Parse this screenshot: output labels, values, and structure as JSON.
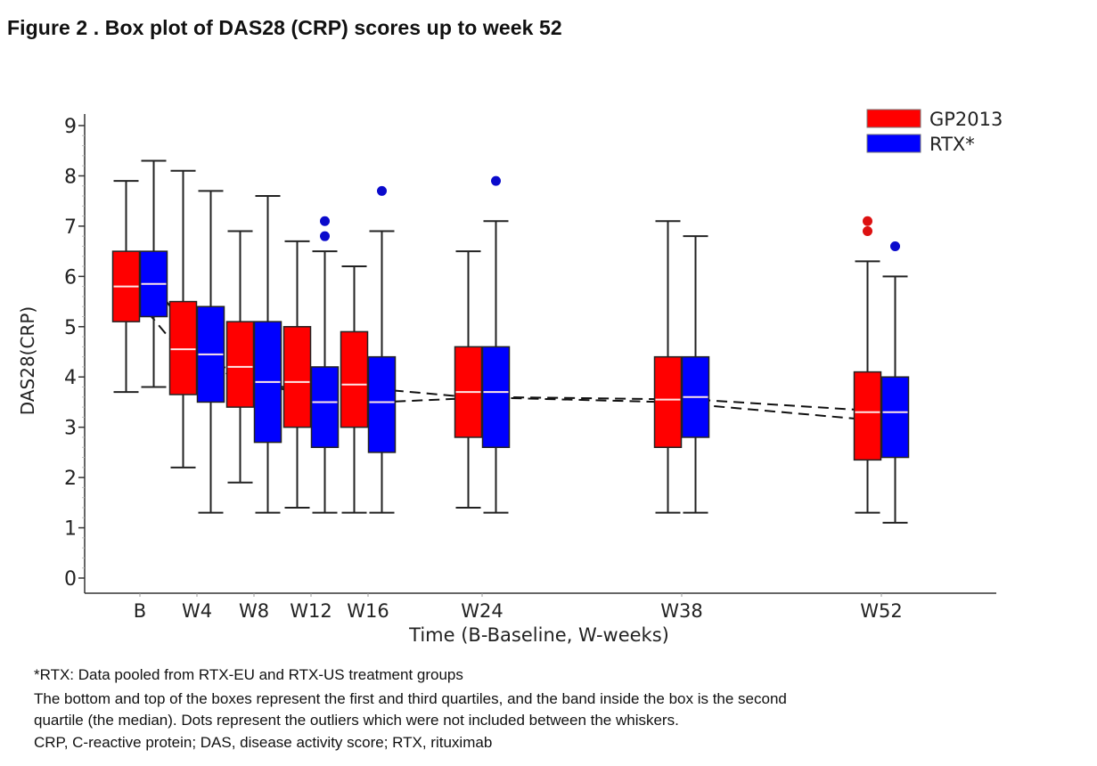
{
  "figure_title": "Figure 2 . Box plot of DAS28 (CRP) scores up to week 52",
  "chart_data": {
    "type": "boxplot",
    "title": "Figure 2 . Box plot of DAS28 (CRP) scores up to week 52",
    "xlabel": "Time (B-Baseline, W-weeks)",
    "ylabel": "DAS28(CRP)",
    "ylim": [
      0,
      9
    ],
    "yticks": [
      "0",
      "1",
      "2",
      "3",
      "4",
      "5",
      "6",
      "7",
      "8",
      "9"
    ],
    "x_weeks": [
      0,
      4,
      8,
      12,
      16,
      24,
      38,
      52
    ],
    "categories": [
      "B",
      "W4",
      "W8",
      "W12",
      "W16",
      "W24",
      "W38",
      "W52"
    ],
    "legend_position": "top-right",
    "series": [
      {
        "name": "GP2013",
        "color": "#ff0000",
        "boxes": [
          {
            "whisker_low": 3.7,
            "q1": 5.1,
            "median": 5.8,
            "q3": 6.5,
            "whisker_high": 7.9,
            "mean": 5.8,
            "outliers": []
          },
          {
            "whisker_low": 2.2,
            "q1": 3.65,
            "median": 4.55,
            "q3": 5.5,
            "whisker_high": 8.1,
            "mean": 4.45,
            "outliers": []
          },
          {
            "whisker_low": 1.9,
            "q1": 3.4,
            "median": 4.2,
            "q3": 5.1,
            "whisker_high": 6.9,
            "mean": 3.95,
            "outliers": []
          },
          {
            "whisker_low": 1.4,
            "q1": 3.0,
            "median": 3.9,
            "q3": 5.0,
            "whisker_high": 6.7,
            "mean": 3.75,
            "outliers": []
          },
          {
            "whisker_low": 1.3,
            "q1": 3.0,
            "median": 3.85,
            "q3": 4.9,
            "whisker_high": 6.2,
            "mean": 3.8,
            "outliers": []
          },
          {
            "whisker_low": 1.4,
            "q1": 2.8,
            "median": 3.7,
            "q3": 4.6,
            "whisker_high": 6.5,
            "mean": 3.6,
            "outliers": []
          },
          {
            "whisker_low": 1.3,
            "q1": 2.6,
            "median": 3.55,
            "q3": 4.4,
            "whisker_high": 7.1,
            "mean": 3.5,
            "outliers": []
          },
          {
            "whisker_low": 1.3,
            "q1": 2.35,
            "median": 3.3,
            "q3": 4.1,
            "whisker_high": 6.3,
            "mean": 3.15,
            "outliers": [
              6.9,
              7.1
            ]
          }
        ]
      },
      {
        "name": "RTX*",
        "color": "#0000ff",
        "boxes": [
          {
            "whisker_low": 3.8,
            "q1": 5.2,
            "median": 5.85,
            "q3": 6.5,
            "whisker_high": 8.3,
            "mean": 5.85,
            "outliers": []
          },
          {
            "whisker_low": 1.3,
            "q1": 3.5,
            "median": 4.45,
            "q3": 5.4,
            "whisker_high": 7.7,
            "mean": 4.3,
            "outliers": []
          },
          {
            "whisker_low": 1.3,
            "q1": 2.7,
            "median": 3.9,
            "q3": 5.1,
            "whisker_high": 7.6,
            "mean": 3.85,
            "outliers": []
          },
          {
            "whisker_low": 1.3,
            "q1": 2.6,
            "median": 3.5,
            "q3": 4.2,
            "whisker_high": 6.5,
            "mean": 3.5,
            "outliers": [
              6.8,
              7.1
            ]
          },
          {
            "whisker_low": 1.3,
            "q1": 2.5,
            "median": 3.5,
            "q3": 4.4,
            "whisker_high": 6.9,
            "mean": 3.5,
            "outliers": [
              7.7
            ]
          },
          {
            "whisker_low": 1.3,
            "q1": 2.6,
            "median": 3.7,
            "q3": 4.6,
            "whisker_high": 7.1,
            "mean": 3.6,
            "outliers": [
              7.9
            ]
          },
          {
            "whisker_low": 1.3,
            "q1": 2.8,
            "median": 3.6,
            "q3": 4.4,
            "whisker_high": 6.8,
            "mean": 3.55,
            "outliers": []
          },
          {
            "whisker_low": 1.1,
            "q1": 2.4,
            "median": 3.3,
            "q3": 4.0,
            "whisker_high": 6.0,
            "mean": 3.3,
            "outliers": [
              6.6
            ]
          }
        ]
      }
    ],
    "mean_line_style": "dashed"
  },
  "legend": [
    {
      "label": "GP2013",
      "color": "#ff0000"
    },
    {
      "label": "RTX*",
      "color": "#0000ff"
    }
  ],
  "footnotes": [
    "*RTX: Data pooled from RTX-EU and RTX-US treatment groups",
    "The bottom and top of the boxes represent the first and third quartiles, and the band inside the box is the second",
    "quartile (the median). Dots represent the outliers which were not included between the whiskers.",
    "CRP, C-reactive protein; DAS, disease activity score; RTX, rituximab"
  ]
}
